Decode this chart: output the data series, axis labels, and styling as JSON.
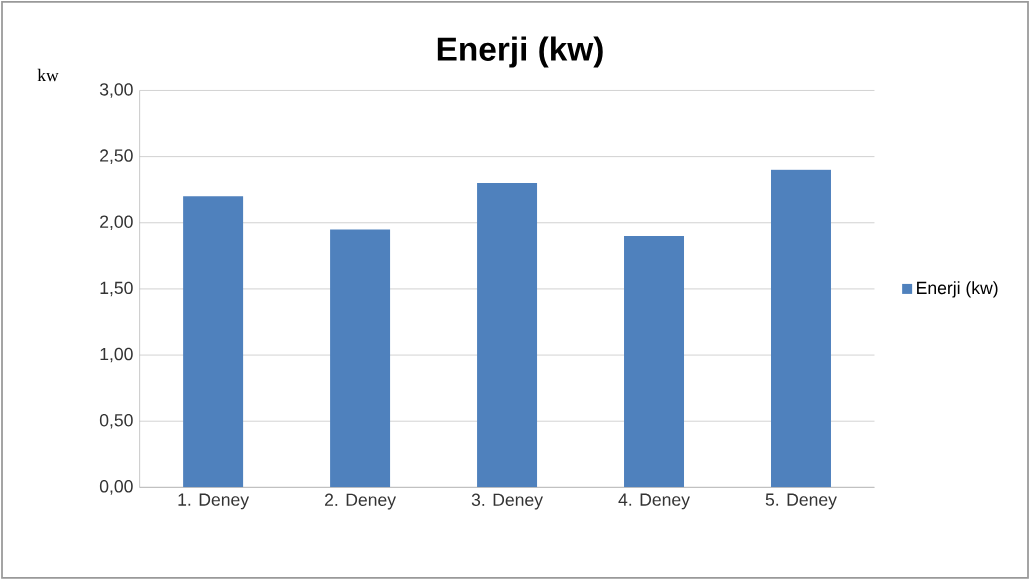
{
  "chart_data": {
    "type": "bar",
    "title": "Enerji (kw)",
    "ylabel": "kw",
    "categories": [
      "1. Deney",
      "2. Deney",
      "3. Deney",
      "4. Deney",
      "5. Deney"
    ],
    "series": [
      {
        "name": "Enerji (kw)",
        "color": "#4f81bd",
        "values": [
          2.2,
          1.95,
          2.3,
          1.9,
          2.4
        ]
      }
    ],
    "ylim": [
      0,
      3
    ],
    "yticks": [
      {
        "value": 0,
        "label": "0,00"
      },
      {
        "value": 0.5,
        "label": "0,50"
      },
      {
        "value": 1,
        "label": "1,00"
      },
      {
        "value": 1.5,
        "label": "1,50"
      },
      {
        "value": 2,
        "label": "2,00"
      },
      {
        "value": 2.5,
        "label": "2,50"
      },
      {
        "value": 3,
        "label": "3,00"
      }
    ],
    "grid": "y",
    "legend": "right"
  }
}
